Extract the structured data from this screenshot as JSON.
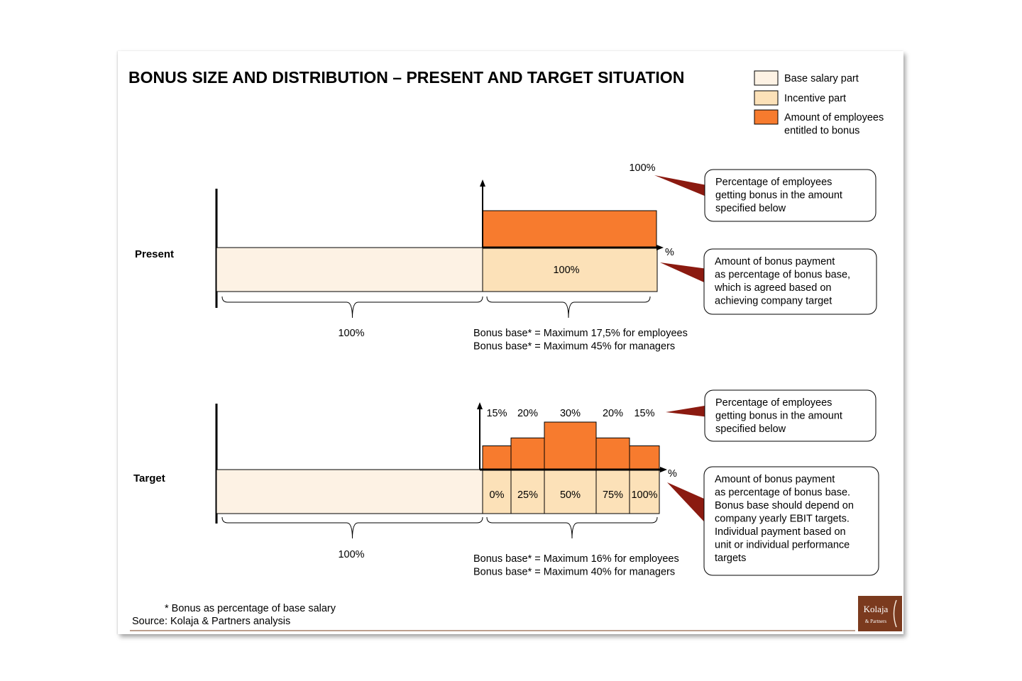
{
  "title": "BONUS  SIZE AND DISTRIBUTION  – PRESENT AND TARGET SITUATION",
  "legend": [
    {
      "label": [
        "Base salary part"
      ],
      "color": "#fdf2e4"
    },
    {
      "label": [
        "Incentive  part"
      ],
      "color": "#fce1b8"
    },
    {
      "label": [
        "Amount of employees",
        "entitled to bonus"
      ],
      "color": "#f77b2e"
    }
  ],
  "rows": {
    "present": {
      "label": "Present",
      "orange_pct_label": "100%",
      "percent_axis_label": "%",
      "incentive_cells": [
        "100%"
      ],
      "base_brace_label": "100%",
      "bonus_base_lines": [
        "Bonus base* = Maximum 17,5% for employees",
        "Bonus base* = Maximum 45% for managers"
      ],
      "callouts": [
        [
          "Percentage of employees",
          "getting bonus in the amount",
          "specified below"
        ],
        [
          "Amount of bonus payment",
          "as percentage of bonus base,",
          "which is agreed  based on",
          "achieving  company target"
        ]
      ]
    },
    "target": {
      "label": "Target",
      "percent_axis_label": "%",
      "distribution": [
        {
          "employees_pct": 15,
          "employees_label": "15%",
          "payment_label": "0%"
        },
        {
          "employees_pct": 20,
          "employees_label": "20%",
          "payment_label": "25%"
        },
        {
          "employees_pct": 30,
          "employees_label": "30%",
          "payment_label": "50%"
        },
        {
          "employees_pct": 20,
          "employees_label": "20%",
          "payment_label": "75%"
        },
        {
          "employees_pct": 15,
          "employees_label": "15%",
          "payment_label": "100%"
        }
      ],
      "base_brace_label": "100%",
      "bonus_base_lines": [
        "Bonus base* = Maximum 16% for employees",
        "Bonus base* = Maximum 40% for managers"
      ],
      "callouts": [
        [
          "Percentage of employees",
          "getting bonus in the amount",
          "specified below"
        ],
        [
          "Amount of bonus payment",
          "as percentage of bonus base.",
          "Bonus base should depend  on",
          "company yearly EBIT targets.",
          "Individual  payment based on",
          "unit or individual  performance",
          "targets"
        ]
      ]
    }
  },
  "footnote": "*  Bonus as percentage  of base salary",
  "source": "Source:  Kolaja & Partners analysis",
  "logo": {
    "name": "Kolaja",
    "sub": "& Partners"
  },
  "colors": {
    "base": "#fdf2e4",
    "incentive": "#fce1b8",
    "orange": "#f77b2e",
    "callout_tail": "#8b1a10",
    "footer_line": "#7a3f1d",
    "logo_bg": "#7b3a1e"
  }
}
